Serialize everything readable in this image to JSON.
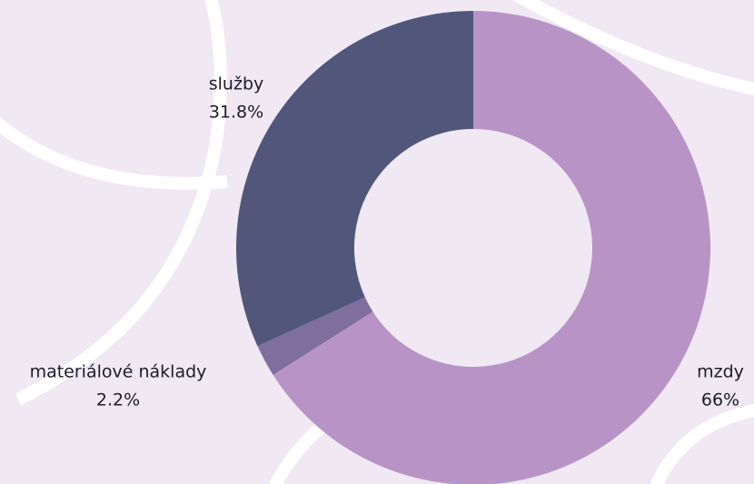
{
  "chart_data": {
    "type": "donut",
    "categories": [
      "mzdy",
      "materiálové náklady",
      "služby"
    ],
    "values": [
      66,
      2.2,
      31.8
    ],
    "value_labels": [
      "66%",
      "2.2%",
      "31.8%"
    ],
    "colors": [
      "#b894c6",
      "#7f6e9e",
      "#50577b"
    ]
  }
}
